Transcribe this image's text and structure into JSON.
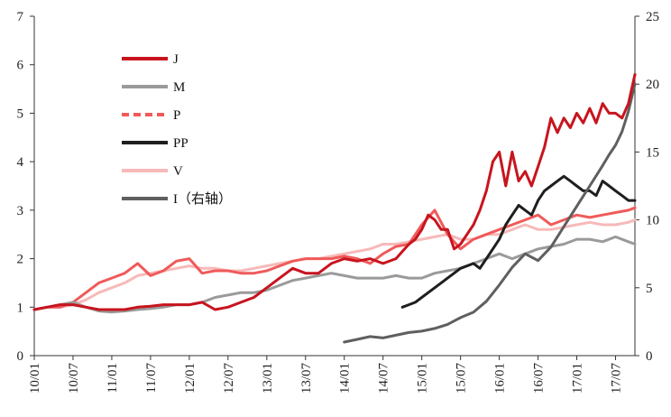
{
  "chart_data": {
    "type": "line",
    "x_ticks": [
      "10/01",
      "10/07",
      "11/01",
      "11/07",
      "12/01",
      "12/07",
      "13/01",
      "13/07",
      "14/01",
      "14/07",
      "15/01",
      "15/07",
      "16/01",
      "16/07",
      "17/01",
      "17/07"
    ],
    "y_left": {
      "ylim": [
        0,
        7
      ],
      "ticks": [
        "0",
        "1",
        "2",
        "3",
        "4",
        "5",
        "6",
        "7"
      ]
    },
    "y_right": {
      "ylim": [
        0,
        25
      ],
      "ticks": [
        "0",
        "5",
        "10",
        "15",
        "20",
        "25"
      ]
    },
    "legend_position": "top-left",
    "colors": {
      "J": "#c8141e",
      "M": "#9a9a9a",
      "P": "#f05a5a",
      "PP": "#1e1e1e",
      "V": "#f7b9b9",
      "I": "#5f5f5f"
    },
    "series": [
      {
        "name": "J",
        "axis": "left",
        "x": [
          0,
          2,
          4,
          6,
          8,
          10,
          12,
          14,
          16,
          18,
          20,
          22,
          24,
          26,
          28,
          30,
          32,
          34,
          36,
          38,
          40,
          42,
          44,
          46,
          48,
          50,
          52,
          54,
          56,
          57,
          58,
          59,
          60,
          61,
          62,
          63,
          64,
          65,
          66,
          67,
          68,
          69,
          70,
          71,
          72,
          73,
          74,
          75,
          76,
          77,
          78,
          79,
          80,
          81,
          82,
          83,
          84,
          85,
          86,
          87,
          88,
          89,
          90,
          91,
          92,
          93
        ],
        "values": [
          0.95,
          1.0,
          1.05,
          1.05,
          1.0,
          0.95,
          0.95,
          0.95,
          1.0,
          1.02,
          1.05,
          1.05,
          1.05,
          1.1,
          0.95,
          1.0,
          1.1,
          1.2,
          1.4,
          1.6,
          1.8,
          1.7,
          1.7,
          1.9,
          2.0,
          1.95,
          2.0,
          1.9,
          2.0,
          2.15,
          2.3,
          2.4,
          2.6,
          2.9,
          2.8,
          2.6,
          2.6,
          2.2,
          2.3,
          2.5,
          2.7,
          3.0,
          3.4,
          4.0,
          4.2,
          3.5,
          4.2,
          3.6,
          3.8,
          3.5,
          3.9,
          4.3,
          4.9,
          4.6,
          4.9,
          4.7,
          5.0,
          4.8,
          5.1,
          4.8,
          5.2,
          5.0,
          5.0,
          4.9,
          5.2,
          5.8
        ]
      },
      {
        "name": "M",
        "axis": "left",
        "x": [
          0,
          2,
          4,
          6,
          8,
          10,
          12,
          14,
          16,
          18,
          20,
          22,
          24,
          26,
          28,
          30,
          32,
          34,
          36,
          38,
          40,
          42,
          44,
          46,
          48,
          50,
          52,
          54,
          56,
          58,
          60,
          62,
          64,
          66,
          68,
          70,
          72,
          74,
          76,
          78,
          80,
          82,
          84,
          86,
          88,
          90,
          92,
          93
        ],
        "values": [
          0.95,
          1.0,
          1.05,
          1.1,
          1.0,
          0.92,
          0.9,
          0.92,
          0.95,
          0.97,
          1.0,
          1.05,
          1.05,
          1.1,
          1.2,
          1.25,
          1.3,
          1.3,
          1.35,
          1.45,
          1.55,
          1.6,
          1.65,
          1.7,
          1.65,
          1.6,
          1.6,
          1.6,
          1.65,
          1.6,
          1.6,
          1.7,
          1.75,
          1.8,
          1.9,
          2.0,
          2.1,
          2.0,
          2.1,
          2.2,
          2.25,
          2.3,
          2.4,
          2.4,
          2.35,
          2.45,
          2.35,
          2.3
        ]
      },
      {
        "name": "P",
        "axis": "left",
        "x": [
          0,
          2,
          4,
          6,
          8,
          10,
          12,
          14,
          16,
          18,
          20,
          22,
          24,
          26,
          28,
          30,
          32,
          34,
          36,
          38,
          40,
          42,
          44,
          46,
          48,
          50,
          52,
          54,
          56,
          58,
          60,
          62,
          64,
          66,
          68,
          70,
          72,
          74,
          76,
          78,
          80,
          82,
          84,
          86,
          88,
          90,
          92,
          93
        ],
        "values": [
          0.95,
          1.0,
          1.0,
          1.1,
          1.3,
          1.5,
          1.6,
          1.7,
          1.9,
          1.65,
          1.75,
          1.95,
          2.0,
          1.7,
          1.75,
          1.75,
          1.7,
          1.7,
          1.75,
          1.85,
          1.95,
          2.0,
          2.0,
          2.0,
          2.05,
          2.0,
          1.9,
          2.1,
          2.25,
          2.3,
          2.7,
          3.0,
          2.5,
          2.2,
          2.4,
          2.5,
          2.6,
          2.7,
          2.8,
          2.9,
          2.7,
          2.8,
          2.9,
          2.85,
          2.9,
          2.95,
          3.0,
          3.05
        ]
      },
      {
        "name": "PP",
        "axis": "left",
        "x": [
          57,
          58,
          59,
          60,
          61,
          62,
          63,
          64,
          65,
          66,
          67,
          68,
          69,
          70,
          71,
          72,
          73,
          74,
          75,
          76,
          77,
          78,
          79,
          80,
          81,
          82,
          83,
          84,
          85,
          86,
          87,
          88,
          89,
          90,
          91,
          92,
          93
        ],
        "values": [
          1.0,
          1.05,
          1.1,
          1.2,
          1.3,
          1.4,
          1.5,
          1.6,
          1.7,
          1.8,
          1.85,
          1.9,
          1.8,
          2.0,
          2.2,
          2.4,
          2.7,
          2.9,
          3.1,
          3.0,
          2.9,
          3.2,
          3.4,
          3.5,
          3.6,
          3.7,
          3.6,
          3.5,
          3.4,
          3.4,
          3.3,
          3.6,
          3.5,
          3.4,
          3.3,
          3.2,
          3.2
        ]
      },
      {
        "name": "V",
        "axis": "left",
        "x": [
          0,
          2,
          4,
          6,
          8,
          10,
          12,
          14,
          16,
          18,
          20,
          22,
          24,
          26,
          28,
          30,
          32,
          34,
          36,
          38,
          40,
          42,
          44,
          46,
          48,
          50,
          52,
          54,
          56,
          58,
          60,
          62,
          64,
          66,
          68,
          70,
          72,
          74,
          76,
          78,
          80,
          82,
          84,
          86,
          88,
          90,
          92,
          93
        ],
        "values": [
          0.95,
          1.0,
          1.0,
          1.05,
          1.15,
          1.3,
          1.4,
          1.5,
          1.65,
          1.7,
          1.75,
          1.8,
          1.85,
          1.8,
          1.8,
          1.75,
          1.75,
          1.8,
          1.85,
          1.9,
          1.95,
          2.0,
          2.0,
          2.05,
          2.1,
          2.15,
          2.2,
          2.3,
          2.3,
          2.35,
          2.4,
          2.45,
          2.5,
          2.4,
          2.4,
          2.5,
          2.5,
          2.6,
          2.7,
          2.6,
          2.6,
          2.65,
          2.7,
          2.75,
          2.7,
          2.7,
          2.75,
          2.8
        ]
      },
      {
        "name": "I（右轴）",
        "axis": "right",
        "x": [
          48,
          50,
          52,
          54,
          56,
          58,
          60,
          62,
          64,
          66,
          68,
          70,
          72,
          74,
          76,
          78,
          80,
          82,
          84,
          86,
          88,
          89,
          90,
          91,
          92,
          93
        ],
        "values": [
          1.0,
          1.2,
          1.4,
          1.3,
          1.5,
          1.7,
          1.8,
          2.0,
          2.3,
          2.8,
          3.2,
          4.0,
          5.2,
          6.5,
          7.5,
          7.0,
          8.0,
          9.5,
          11.0,
          12.5,
          14.0,
          14.8,
          15.5,
          16.5,
          18.0,
          20.0
        ]
      }
    ]
  }
}
